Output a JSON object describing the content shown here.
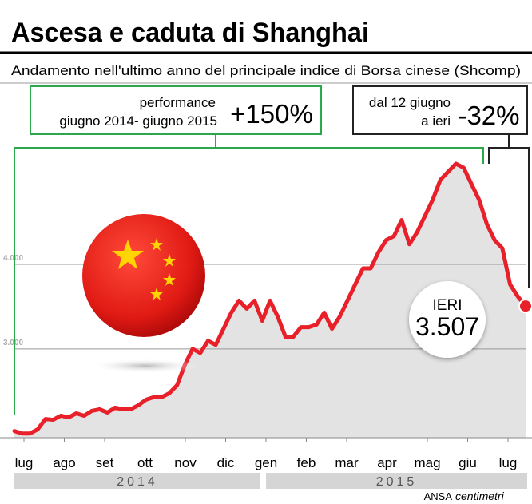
{
  "title": "Ascesa e caduta di Shanghai",
  "subtitle": "Andamento nell'ultimo anno del principale indice di Borsa cinese (Shcomp)",
  "annotations": {
    "performance": {
      "line1": "performance",
      "line2": "giugno 2014- giugno 2015",
      "value": "+150%"
    },
    "drop": {
      "line1": "dal 12 giugno",
      "line2": "a ieri",
      "value": "-32%"
    },
    "last": {
      "label": "IERI",
      "value": "3.507"
    }
  },
  "source": {
    "agency": "ANSA",
    "brand": "centimetri"
  },
  "chart_data": {
    "type": "line",
    "color": "#e8202a",
    "area_color": "#e3e3e3",
    "months": [
      "lug",
      "ago",
      "set",
      "ott",
      "nov",
      "dic",
      "gen",
      "feb",
      "mar",
      "apr",
      "mag",
      "giu",
      "lug"
    ],
    "years": [
      "2014",
      "2015"
    ],
    "values": [
      2029,
      2000,
      2000,
      2048,
      2171,
      2162,
      2210,
      2190,
      2238,
      2210,
      2267,
      2286,
      2248,
      2305,
      2286,
      2286,
      2333,
      2400,
      2429,
      2429,
      2476,
      2571,
      2810,
      3000,
      2952,
      3095,
      3048,
      3238,
      3429,
      3571,
      3476,
      3571,
      3333,
      3571,
      3381,
      3143,
      3143,
      3257,
      3257,
      3286,
      3429,
      3238,
      3381,
      3571,
      3762,
      3952,
      3952,
      4143,
      4286,
      4333,
      4524,
      4238,
      4381,
      4571,
      4762,
      5000,
      5095,
      5190,
      5143,
      4952,
      4762,
      4476,
      4286,
      4190,
      3762,
      3619,
      3507
    ],
    "ylim": [
      1950,
      5350
    ],
    "yticks": [
      {
        "value": 3000,
        "label": "3.000"
      },
      {
        "value": 4000,
        "label": "4.000"
      }
    ],
    "grid": true
  }
}
